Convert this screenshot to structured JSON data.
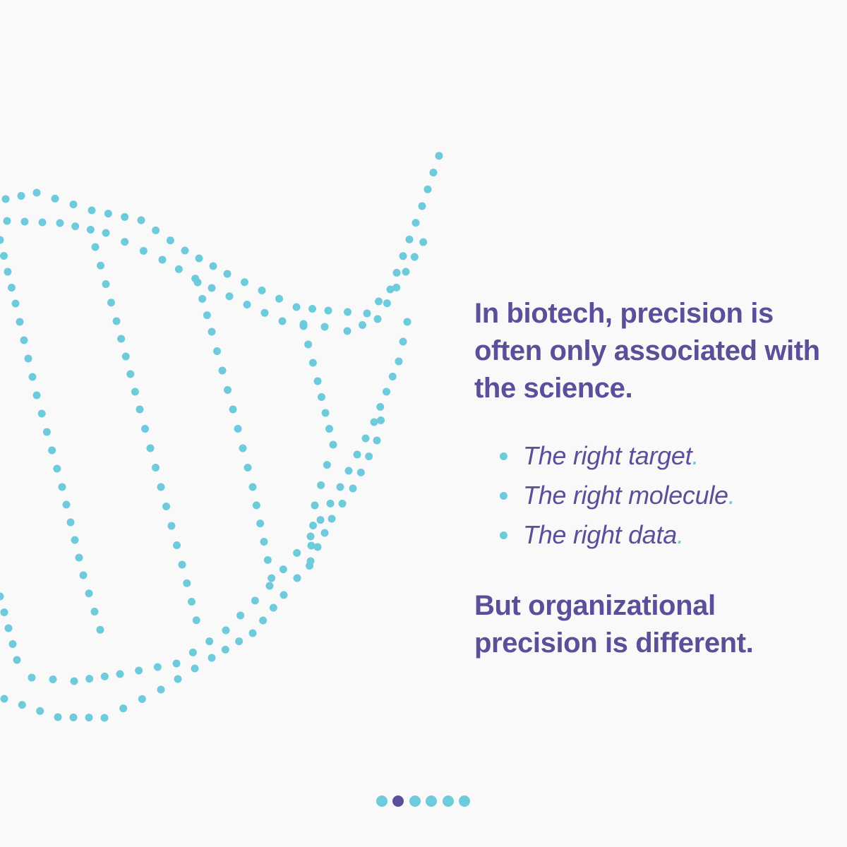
{
  "heading": "In biotech, precision is often only associated with the science.",
  "bullets": [
    {
      "text": "The right target",
      "end": "."
    },
    {
      "text": "The right molecule",
      "end": "."
    },
    {
      "text": "The right data",
      "end": "."
    }
  ],
  "closing": "But organizational precision is different."
}
